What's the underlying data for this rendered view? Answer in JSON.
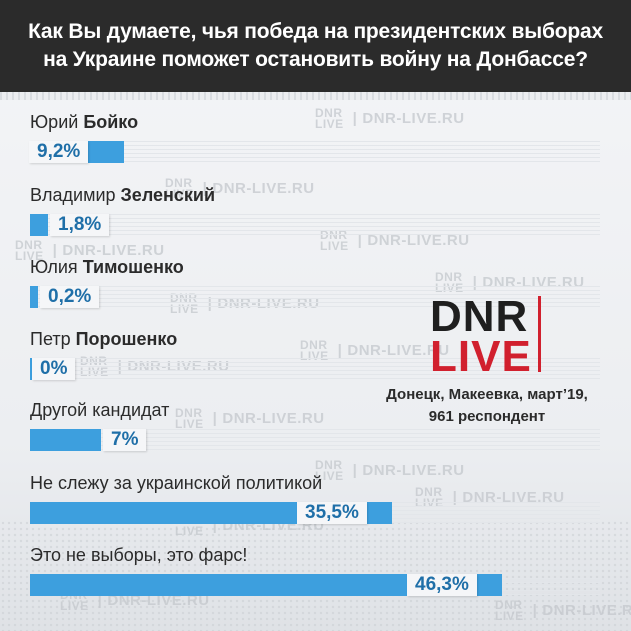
{
  "header": {
    "title_line1": "Как Вы думаете, чья победа на президентских выборах",
    "title_line2": "на Украине поможет остановить войну на Донбассе?"
  },
  "watermark": {
    "logo_top": "DNR",
    "logo_bottom": "LIVE",
    "site": "DNR-LIVE.RU"
  },
  "brand": {
    "top": "DNR",
    "bottom": "LIVE",
    "accent_color": "#d1202e"
  },
  "source": {
    "line1": "Донецк, Макеевка, март’19,",
    "line2": "961 респондент"
  },
  "colors": {
    "bar": "#3d9fde",
    "value_text": "#1f6fa8",
    "header_bg": "#2b2b2b"
  },
  "chart_data": {
    "type": "bar",
    "orientation": "horizontal",
    "title": "Как Вы думаете, чья победа на президентских выборах на Украине поможет остановить войну на Донбассе?",
    "unit": "%",
    "xlim": [
      0,
      100
    ],
    "categories": [
      {
        "first": "Юрий ",
        "bold": "Бойко"
      },
      {
        "first": "Владимир ",
        "bold": "Зеленский"
      },
      {
        "first": "Юлия ",
        "bold": "Тимошенко"
      },
      {
        "first": "Петр ",
        "bold": "Порошенко"
      },
      {
        "first": "Другой кандидат",
        "bold": ""
      },
      {
        "first": "Не слежу за украинской политикой",
        "bold": ""
      },
      {
        "first": "Это не выборы, это фарс!",
        "bold": ""
      }
    ],
    "values": [
      9.2,
      1.8,
      0.2,
      0,
      7,
      35.5,
      46.3
    ],
    "value_labels": [
      "9,2%",
      "1,8%",
      "0,2%",
      "0%",
      "7%",
      "35,5%",
      "46,3%"
    ]
  }
}
